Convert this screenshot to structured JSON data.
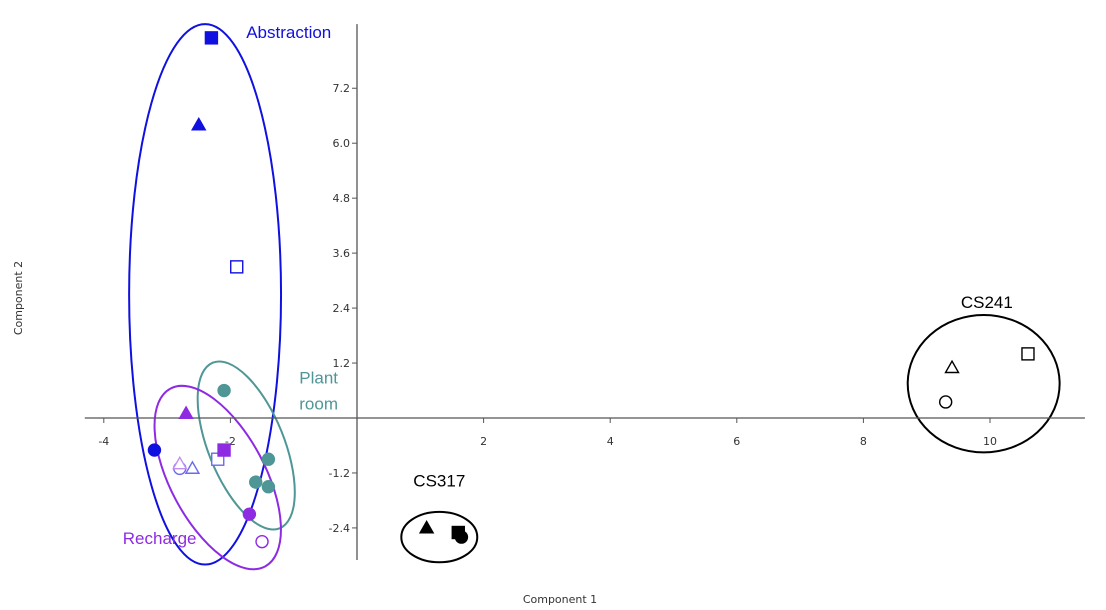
{
  "chart_data": {
    "type": "scatter",
    "xlabel": "Component 1",
    "ylabel": "Component 2",
    "xlim": [
      -4.3,
      11.5
    ],
    "ylim": [
      -3.1,
      8.6
    ],
    "x_ticks": [
      -4,
      -2,
      2,
      4,
      6,
      8,
      10
    ],
    "x_tick_labels": [
      "-4",
      "-2",
      "2",
      "4",
      "6",
      "8",
      "10"
    ],
    "y_ticks": [
      -2.4,
      -1.2,
      1.2,
      2.4,
      3.6,
      4.8,
      6.0,
      7.2
    ],
    "y_tick_labels": [
      "-2.4",
      "-1.2",
      "1.2",
      "2.4",
      "3.6",
      "4.8",
      "6.0",
      "7.2"
    ],
    "grid": false,
    "colors": {
      "abstraction": "#1010e0",
      "abstraction_light": "#6a6aef",
      "plant_room": "#4f9696",
      "recharge": "#8e2be2",
      "recharge_light": "#c38ff0",
      "site": "#000000"
    },
    "points": [
      {
        "x": -2.3,
        "y": 8.3,
        "shape": "square",
        "filled": true,
        "color": "abstraction"
      },
      {
        "x": -2.5,
        "y": 6.4,
        "shape": "triangle",
        "filled": true,
        "color": "abstraction"
      },
      {
        "x": -1.9,
        "y": 3.3,
        "shape": "square",
        "filled": false,
        "color": "abstraction"
      },
      {
        "x": -3.2,
        "y": -0.7,
        "shape": "circle",
        "filled": true,
        "color": "abstraction"
      },
      {
        "x": -2.8,
        "y": -1.1,
        "shape": "circle",
        "filled": false,
        "color": "abstraction_light"
      },
      {
        "x": -2.6,
        "y": -1.1,
        "shape": "triangle",
        "filled": false,
        "color": "abstraction_light"
      },
      {
        "x": -2.2,
        "y": -0.9,
        "shape": "square",
        "filled": false,
        "color": "abstraction_light"
      },
      {
        "x": -2.7,
        "y": 0.1,
        "shape": "triangle",
        "filled": true,
        "color": "recharge"
      },
      {
        "x": -2.8,
        "y": -1.0,
        "shape": "triangle",
        "filled": false,
        "color": "recharge_light"
      },
      {
        "x": -2.1,
        "y": -0.7,
        "shape": "square",
        "filled": true,
        "color": "recharge"
      },
      {
        "x": -1.7,
        "y": -2.1,
        "shape": "circle",
        "filled": true,
        "color": "recharge"
      },
      {
        "x": -1.5,
        "y": -2.7,
        "shape": "circle",
        "filled": false,
        "color": "recharge"
      },
      {
        "x": -2.1,
        "y": 0.6,
        "shape": "circle",
        "filled": true,
        "color": "plant_room"
      },
      {
        "x": -1.4,
        "y": -0.9,
        "shape": "circle",
        "filled": true,
        "color": "plant_room"
      },
      {
        "x": -1.6,
        "y": -1.4,
        "shape": "circle",
        "filled": true,
        "color": "plant_room"
      },
      {
        "x": -1.4,
        "y": -1.5,
        "shape": "circle",
        "filled": true,
        "color": "plant_room"
      },
      {
        "x": 1.1,
        "y": -2.4,
        "shape": "triangle",
        "filled": true,
        "color": "site"
      },
      {
        "x": 1.6,
        "y": -2.5,
        "shape": "square",
        "filled": true,
        "color": "site"
      },
      {
        "x": 1.65,
        "y": -2.6,
        "shape": "circle",
        "filled": true,
        "color": "site"
      },
      {
        "x": 10.6,
        "y": 1.4,
        "shape": "square",
        "filled": false,
        "color": "site"
      },
      {
        "x": 9.4,
        "y": 1.1,
        "shape": "triangle",
        "filled": false,
        "color": "site"
      },
      {
        "x": 9.3,
        "y": 0.35,
        "shape": "circle",
        "filled": false,
        "color": "site"
      }
    ],
    "groups": [
      {
        "label": "Abstraction",
        "color": "abstraction",
        "cx": -2.4,
        "cy": 2.7,
        "rx": 1.2,
        "ry": 5.9,
        "angle": 0,
        "label_x": -1.75,
        "label_y": 8.3,
        "label_anchor": "start"
      },
      {
        "label": "Plant room",
        "color": "plant_room",
        "cx": -1.75,
        "cy": -0.6,
        "rx": 0.6,
        "ry": 1.95,
        "angle": -22,
        "label_x": -0.3,
        "label_y": 0.75,
        "label_anchor": "end"
      },
      {
        "label": "Recharge",
        "color": "recharge",
        "cx": -2.2,
        "cy": -1.3,
        "rx": 0.75,
        "ry": 2.2,
        "angle": -28,
        "label_x": -3.7,
        "label_y": -2.75,
        "label_anchor": "start"
      },
      {
        "label": "CS317",
        "color": "site",
        "cx": 1.3,
        "cy": -2.6,
        "rx": 0.6,
        "ry": 0.55,
        "angle": 0,
        "label_x": 1.3,
        "label_y": -1.5,
        "label_anchor": "middle"
      },
      {
        "label": "CS241",
        "color": "site",
        "cx": 9.9,
        "cy": 0.75,
        "rx": 1.2,
        "ry": 1.5,
        "angle": 0,
        "label_x": 9.95,
        "label_y": 2.4,
        "label_anchor": "middle"
      }
    ]
  }
}
